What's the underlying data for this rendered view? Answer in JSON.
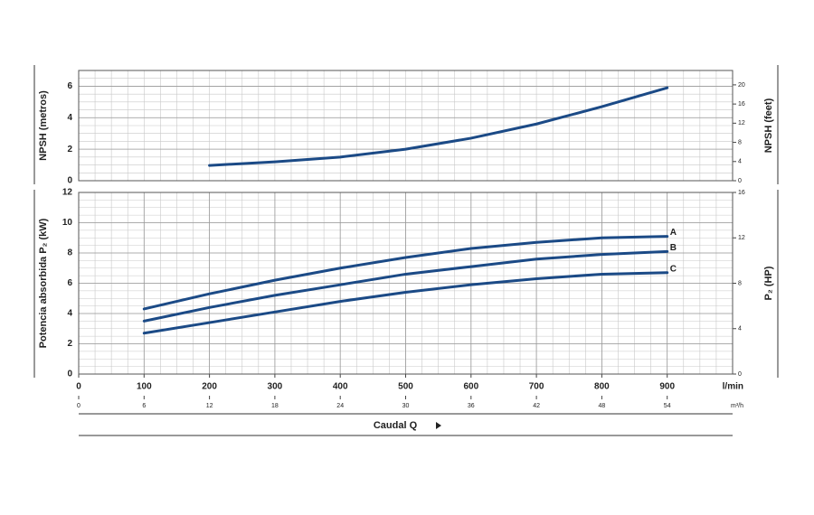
{
  "chart_data": [
    {
      "type": "line",
      "ylabel": "NPSH (metros)",
      "y2label": "NPSH (feet)",
      "x": [
        200,
        300,
        400,
        500,
        600,
        700,
        800,
        900
      ],
      "values": [
        0.97,
        1.2,
        1.5,
        2.0,
        2.7,
        3.6,
        4.7,
        5.9
      ],
      "color": "#1b4a86",
      "xlim": [
        0,
        1000
      ],
      "ylim": [
        0,
        7
      ],
      "yticks": [
        0,
        2,
        4,
        6
      ],
      "y2lim": [
        0,
        23
      ],
      "y2ticks": [
        0,
        4,
        8,
        12,
        16,
        20
      ],
      "grid": true
    },
    {
      "type": "line",
      "ylabel": "Potencia absorbida P₂ (kW)",
      "y2label": "P₂ (HP)",
      "xlabel": "Caudal Q",
      "xunit": "l/min",
      "x2unit": "m³/h",
      "x": [
        100,
        200,
        300,
        400,
        500,
        600,
        700,
        800,
        900
      ],
      "series": [
        {
          "name": "A",
          "color": "#1b4a86",
          "values": [
            4.3,
            5.3,
            6.2,
            7.0,
            7.7,
            8.3,
            8.7,
            9.0,
            9.1
          ]
        },
        {
          "name": "B",
          "color": "#1b4a86",
          "values": [
            3.5,
            4.4,
            5.2,
            5.9,
            6.6,
            7.1,
            7.6,
            7.9,
            8.1
          ]
        },
        {
          "name": "C",
          "color": "#1b4a86",
          "values": [
            2.7,
            3.4,
            4.1,
            4.8,
            5.4,
            5.9,
            6.3,
            6.6,
            6.7
          ]
        }
      ],
      "xlim": [
        0,
        1000
      ],
      "xticks": [
        0,
        100,
        200,
        300,
        400,
        500,
        600,
        700,
        800,
        900
      ],
      "x2lim": [
        0,
        60
      ],
      "x2ticks": [
        0,
        6,
        12,
        18,
        24,
        30,
        36,
        42,
        48,
        54
      ],
      "ylim": [
        0,
        12
      ],
      "yticks": [
        0,
        2,
        4,
        6,
        8,
        10,
        12
      ],
      "y2lim": [
        0,
        16
      ],
      "y2ticks": [
        0,
        4,
        8,
        12,
        16
      ],
      "grid": true
    }
  ]
}
